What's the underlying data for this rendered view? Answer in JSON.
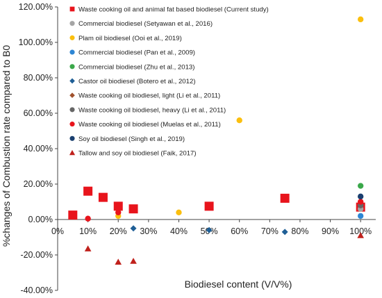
{
  "chart_data": {
    "type": "scatter",
    "xlabel": "Biodiesel content (V/V%)",
    "ylabel": "%changes of Combustion rate compared to B0",
    "xlim": [
      0,
      105
    ],
    "ylim": [
      -40,
      120
    ],
    "x_ticks": [
      0,
      10,
      20,
      30,
      40,
      50,
      60,
      70,
      80,
      90,
      100
    ],
    "x_tick_labels": [
      "0%",
      "10%",
      "20%",
      "30%",
      "40%",
      "50%",
      "60%",
      "70%",
      "80%",
      "90%",
      "100%"
    ],
    "y_ticks": [
      -40,
      -20,
      0,
      20,
      40,
      60,
      80,
      100,
      120
    ],
    "y_tick_labels": [
      "-40.00%",
      "-20.00%",
      "0.00%",
      "20.00%",
      "40.00%",
      "60.00%",
      "80.00%",
      "100.00%",
      "120.00%"
    ],
    "grid": false,
    "legend_position": "top-left",
    "series": [
      {
        "name": "Waste cooking oil and animal fat based biodiesel (Current study)",
        "marker": "square-large",
        "color": "#e8141c",
        "x": [
          5,
          10,
          15,
          20,
          25,
          50,
          75,
          100
        ],
        "y": [
          2.5,
          16,
          12.5,
          7.5,
          6,
          7.5,
          12,
          7
        ]
      },
      {
        "name": "Commercial biodiesel (Setyawan et al., 2016)",
        "marker": "circle",
        "color": "#a5a5a5",
        "x": [
          100
        ],
        "y": [
          6
        ]
      },
      {
        "name": "Plam oil biodiesel (Ooi et al., 2019)",
        "marker": "circle",
        "color": "#fbbf0e",
        "x": [
          20,
          40,
          60,
          100
        ],
        "y": [
          2,
          4,
          56,
          113
        ]
      },
      {
        "name": "Commercial biodiesel (Pan et al., 2009)",
        "marker": "circle",
        "color": "#2e86d4",
        "x": [
          100
        ],
        "y": [
          2
        ]
      },
      {
        "name": "Commercial biodiesel (Zhu et al., 2013)",
        "marker": "circle",
        "color": "#3aa84a",
        "x": [
          100
        ],
        "y": [
          19
        ]
      },
      {
        "name": "Castor oil biodiesel (Botero et al., 2012)",
        "marker": "diamond",
        "color": "#1f5f96",
        "x": [
          25,
          50,
          75
        ],
        "y": [
          -5,
          -6,
          -7
        ]
      },
      {
        "name": "Waste cooking oil biodiesel, light (Li et al., 2011)",
        "marker": "diamond",
        "color": "#a0522d",
        "x": [
          100
        ],
        "y": [
          8
        ]
      },
      {
        "name": "Waste cooking oil biodiesel, heavy (Li et al., 2011)",
        "marker": "circle",
        "color": "#666666",
        "x": [
          100
        ],
        "y": [
          8
        ]
      },
      {
        "name": "Waste cooking oil biodiesel (Muelas et al., 2011)",
        "marker": "circle",
        "color": "#e8141c",
        "x": [
          10,
          20,
          100
        ],
        "y": [
          0.5,
          4,
          10
        ]
      },
      {
        "name": "Soy oil biodiesel (Singh et al., 2019)",
        "marker": "circle",
        "color": "#1a3f6f",
        "x": [
          100
        ],
        "y": [
          13
        ]
      },
      {
        "name": "Tallow and soy oil biodiesel (Faik, 2017)",
        "marker": "triangle",
        "color": "#c0211c",
        "x": [
          10,
          20,
          25,
          100
        ],
        "y": [
          -16.5,
          -24,
          -23.5,
          -9
        ]
      }
    ]
  }
}
